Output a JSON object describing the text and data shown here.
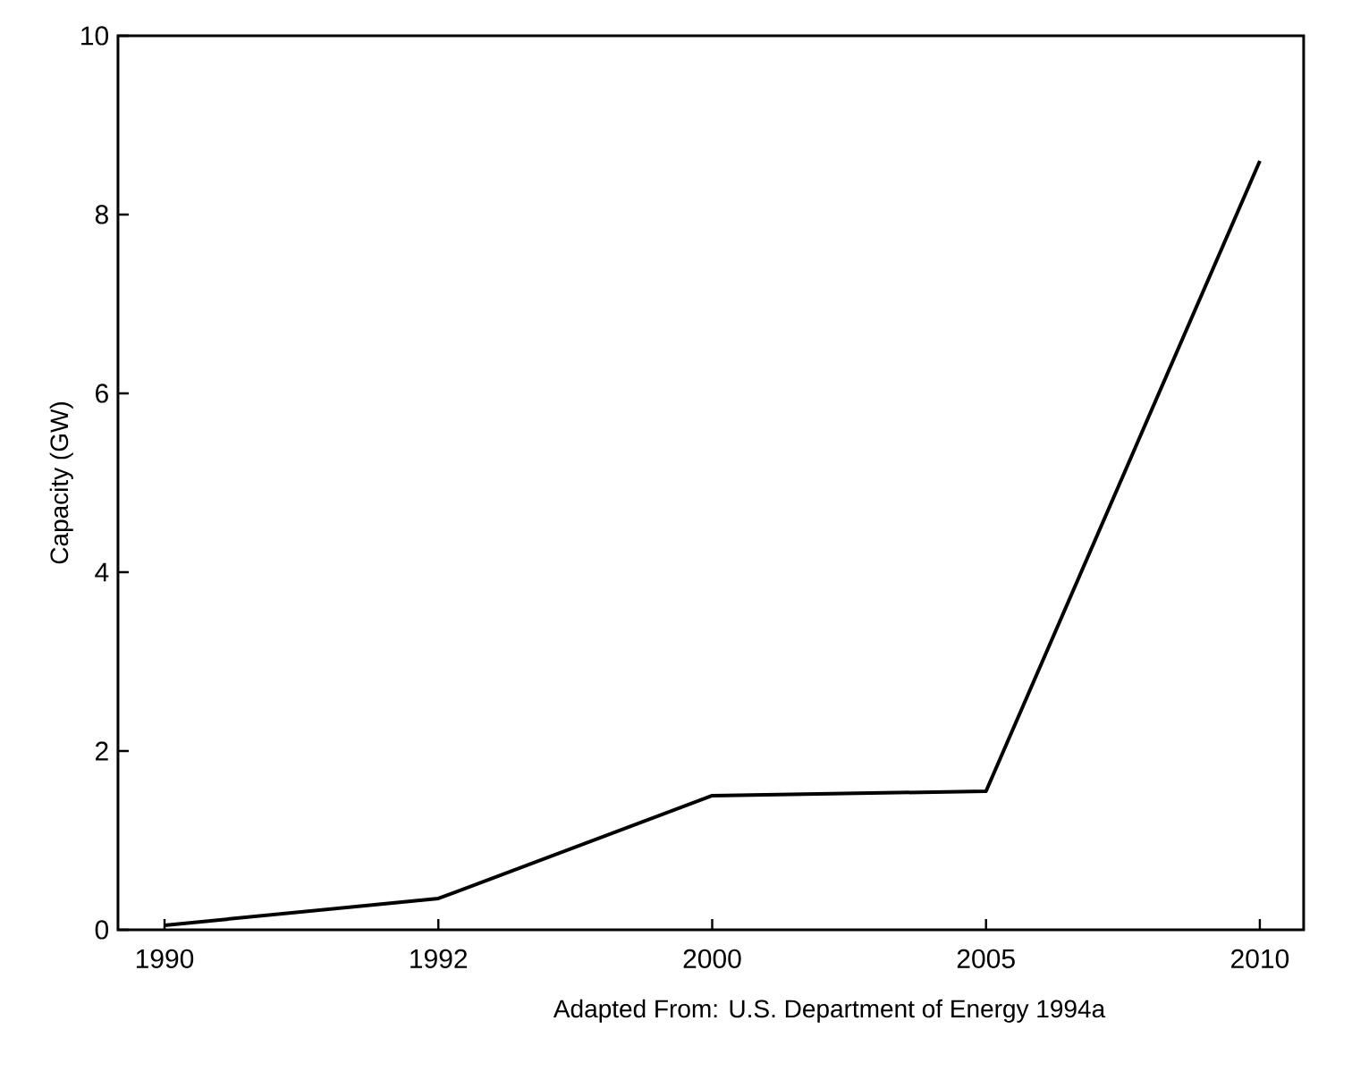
{
  "chart_data": {
    "type": "line",
    "ylabel": "Capacity (GW)",
    "categories": [
      "1990",
      "1992",
      "2000",
      "2005",
      "2010"
    ],
    "values": [
      0.05,
      0.35,
      1.5,
      1.55,
      8.6
    ],
    "color": "#000000",
    "ylim": [
      0,
      10
    ],
    "yticks": [
      0,
      2,
      4,
      6,
      8,
      10
    ],
    "annotations": [
      "Adapted From: U.S. Department of Energy 1994a"
    ]
  }
}
